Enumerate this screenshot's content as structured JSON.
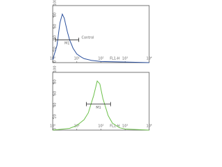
{
  "chart_data": [
    {
      "type": "line",
      "xscale": "log",
      "xlabel": "FL1-H",
      "x": [
        1,
        1.5,
        2,
        2.5,
        3,
        4,
        5,
        7,
        10,
        15,
        20,
        40,
        100,
        1000,
        10000
      ],
      "series": [
        {
          "name": "Control",
          "color": "#2a4f9c",
          "values": [
            5,
            30,
            70,
            85,
            78,
            55,
            40,
            25,
            15,
            10,
            7,
            4,
            2,
            1,
            0
          ]
        }
      ],
      "gate": {
        "label": "M1",
        "range": [
          1.3,
          12
        ],
        "level": 40
      },
      "xlim": [
        1,
        10000
      ],
      "xticks": [
        {
          "value": 1,
          "label": "10⁰"
        },
        {
          "value": 10,
          "label": "10¹"
        },
        {
          "value": 100,
          "label": "10²"
        },
        {
          "value": 1000,
          "label": "10³"
        },
        {
          "value": 10000,
          "label": "10⁴"
        }
      ],
      "ylim": [
        0,
        100
      ],
      "yticks": [
        0,
        20,
        40,
        60,
        80,
        100
      ]
    },
    {
      "type": "line",
      "xscale": "log",
      "xlabel": "FL1-H",
      "x": [
        1,
        5,
        10,
        20,
        30,
        50,
        70,
        90,
        120,
        200,
        300,
        600,
        1000,
        10000
      ],
      "series": [
        {
          "name": "M1",
          "color": "#6cc04a",
          "values": [
            0,
            3,
            8,
            18,
            30,
            60,
            85,
            80,
            55,
            25,
            12,
            4,
            2,
            0
          ]
        }
      ],
      "gate": {
        "label": "M1",
        "range": [
          25,
          250
        ],
        "level": 45
      },
      "xlim": [
        1,
        10000
      ],
      "xticks": [
        {
          "value": 1,
          "label": "10⁰"
        },
        {
          "value": 10,
          "label": "10¹"
        },
        {
          "value": 100,
          "label": "10²"
        },
        {
          "value": 1000,
          "label": "10³"
        },
        {
          "value": 10000,
          "label": "10⁴"
        }
      ],
      "ylim": [
        0,
        100
      ],
      "yticks": [
        0,
        20,
        40,
        60,
        80,
        100
      ]
    }
  ]
}
